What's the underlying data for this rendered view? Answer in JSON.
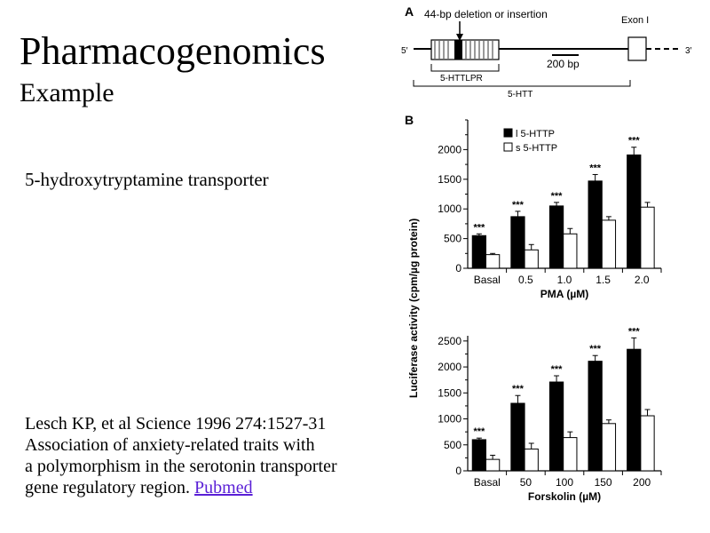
{
  "slide": {
    "title": "Pharmacogenomics",
    "subtitle": "Example",
    "topic": "5-hydroxytryptamine transporter",
    "reference": {
      "line1": "Lesch KP, et al Science 1996 274:1527-31",
      "line2": "Association of anxiety-related traits with",
      "line3": "a polymorphism in the serotonin transporter",
      "line4_prefix": "gene regulatory region. ",
      "link_text": " Pubmed"
    }
  },
  "figure": {
    "panel_a": {
      "label": "A",
      "deletion_label": "44-bp deletion or insertion",
      "exon_label": "Exon I",
      "five_prime": "5′",
      "three_prime": "3′",
      "scale_label": "200 bp",
      "region1_label": "5-HTTLPR",
      "region2_label": "5-HTT"
    },
    "panel_b": {
      "label": "B",
      "ylabel": "Luciferase activity (cpm/µg protein)"
    }
  },
  "chart_data": [
    {
      "type": "bar",
      "categories": [
        "Basal",
        "0.5",
        "1.0",
        "1.5",
        "2.0"
      ],
      "series": [
        {
          "name": "l 5-HTTP",
          "color": "#000000",
          "values": [
            550,
            870,
            1050,
            1470,
            1910
          ],
          "errors": [
            30,
            90,
            60,
            110,
            130
          ]
        },
        {
          "name": "s 5-HTTP",
          "color": "#ffffff",
          "values": [
            230,
            310,
            580,
            810,
            1030
          ],
          "errors": [
            20,
            90,
            90,
            60,
            80
          ]
        }
      ],
      "significance": [
        "***",
        "***",
        "***",
        "***",
        "***"
      ],
      "xlabel": "PMA (µM)",
      "ylim": [
        0,
        2500
      ],
      "yticks": [
        0,
        500,
        1000,
        1500,
        2000
      ]
    },
    {
      "type": "bar",
      "categories": [
        "Basal",
        "50",
        "100",
        "150",
        "200"
      ],
      "series": [
        {
          "name": "l 5-HTTP",
          "color": "#000000",
          "values": [
            600,
            1300,
            1710,
            2110,
            2340
          ],
          "errors": [
            30,
            150,
            120,
            110,
            220
          ]
        },
        {
          "name": "s 5-HTTP",
          "color": "#ffffff",
          "values": [
            220,
            420,
            640,
            910,
            1060
          ],
          "errors": [
            80,
            110,
            110,
            70,
            120
          ]
        }
      ],
      "significance": [
        "***",
        "***",
        "***",
        "***",
        "***"
      ],
      "xlabel": "Forskolin (µM)",
      "ylim": [
        0,
        2600
      ],
      "yticks": [
        0,
        500,
        1000,
        1500,
        2000,
        2500
      ]
    }
  ]
}
